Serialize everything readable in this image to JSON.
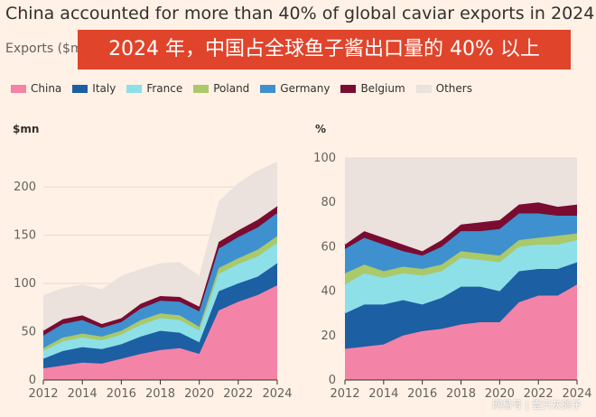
{
  "title": "China accounted for more than 40% of global caviar exports in 2024",
  "subtitle": "Exports ($mn",
  "banner": "2024 年，中国占全球鱼子酱出口量的 40% 以上",
  "watermark": "网易号 | 壹只灰鸽子",
  "chart_data": [
    {
      "type": "area",
      "stacked": true,
      "title": "$mn",
      "x": [
        2012,
        2013,
        2014,
        2015,
        2016,
        2017,
        2018,
        2019,
        2020,
        2021,
        2022,
        2023,
        2024
      ],
      "xticks": [
        2012,
        2014,
        2016,
        2018,
        2020,
        2022,
        2024
      ],
      "ylim": [
        0,
        230
      ],
      "yticks": [
        0,
        50,
        100,
        150,
        200
      ],
      "grid": true,
      "series": [
        {
          "name": "China",
          "color": "#f483a8",
          "values": [
            12,
            15,
            18,
            17,
            22,
            27,
            31,
            33,
            27,
            72,
            81,
            88,
            98
          ]
        },
        {
          "name": "Italy",
          "color": "#1d5fa3",
          "values": [
            10,
            15,
            16,
            15,
            15,
            18,
            20,
            16,
            12,
            20,
            19,
            19,
            23
          ]
        },
        {
          "name": "France",
          "color": "#8de0e8",
          "values": [
            8,
            10,
            10,
            9,
            10,
            12,
            13,
            13,
            12,
            18,
            20,
            21,
            21
          ]
        },
        {
          "name": "Poland",
          "color": "#a9c96a",
          "values": [
            3,
            4,
            4,
            4,
            4,
            5,
            5,
            5,
            4,
            6,
            6,
            7,
            7
          ]
        },
        {
          "name": "Germany",
          "color": "#3f90cf",
          "values": [
            13,
            14,
            14,
            9,
            9,
            12,
            13,
            14,
            16,
            20,
            22,
            23,
            24
          ]
        },
        {
          "name": "Belgium",
          "color": "#7a0c31",
          "values": [
            5,
            5,
            5,
            4,
            4,
            5,
            5,
            5,
            5,
            7,
            7,
            8,
            7
          ]
        },
        {
          "name": "Others",
          "color": "#ebe1dd",
          "values": [
            37,
            32,
            32,
            36,
            44,
            36,
            34,
            36,
            32,
            42,
            49,
            51,
            46
          ]
        }
      ]
    },
    {
      "type": "area",
      "stacked": true,
      "title": "%",
      "x": [
        2012,
        2013,
        2014,
        2015,
        2016,
        2017,
        2018,
        2019,
        2020,
        2021,
        2022,
        2023,
        2024
      ],
      "xticks": [
        2012,
        2014,
        2016,
        2018,
        2020,
        2022,
        2024
      ],
      "ylim": [
        0,
        100
      ],
      "yticks": [
        0,
        20,
        40,
        60,
        80,
        100
      ],
      "grid": true,
      "series": [
        {
          "name": "China",
          "color": "#f483a8",
          "values": [
            14,
            15,
            16,
            20,
            22,
            23,
            25,
            26,
            26,
            35,
            38,
            38,
            43
          ]
        },
        {
          "name": "Italy",
          "color": "#1d5fa3",
          "values": [
            16,
            19,
            18,
            16,
            12,
            14,
            17,
            16,
            14,
            14,
            12,
            12,
            10
          ]
        },
        {
          "name": "France",
          "color": "#8de0e8",
          "values": [
            13,
            14,
            12,
            12,
            13,
            12,
            13,
            12,
            13,
            11,
            11,
            11,
            10
          ]
        },
        {
          "name": "Poland",
          "color": "#a9c96a",
          "values": [
            5,
            4,
            3,
            3,
            3,
            3,
            3,
            3,
            3,
            3,
            3,
            4,
            3
          ]
        },
        {
          "name": "Germany",
          "color": "#3f90cf",
          "values": [
            11,
            12,
            12,
            7,
            6,
            8,
            9,
            10,
            12,
            12,
            11,
            9,
            8
          ]
        },
        {
          "name": "Belgium",
          "color": "#7a0c31",
          "values": [
            2,
            3,
            3,
            3,
            2,
            3,
            3,
            4,
            4,
            4,
            5,
            4,
            5
          ]
        },
        {
          "name": "Others",
          "color": "#ebe1dd",
          "values": [
            39,
            33,
            36,
            39,
            42,
            37,
            30,
            29,
            28,
            21,
            20,
            22,
            21
          ]
        }
      ]
    }
  ]
}
